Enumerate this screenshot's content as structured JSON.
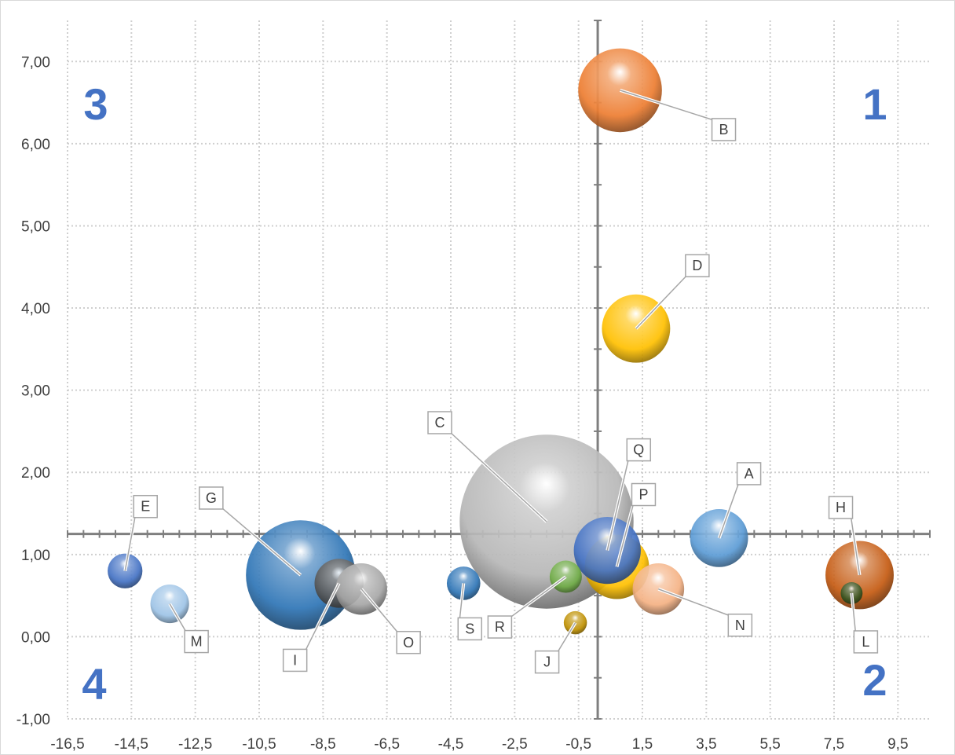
{
  "chart_data": {
    "type": "scatter",
    "subtype": "bubble",
    "title": "",
    "xlabel": "",
    "ylabel": "",
    "xlim": [
      -16.5,
      10.5
    ],
    "ylim": [
      -1.0,
      7.5
    ],
    "x_ticks": [
      "-16,5",
      "-14,5",
      "-12,5",
      "-10,5",
      "-8,5",
      "-6,5",
      "-4,5",
      "-2,5",
      "-0,5",
      "1,5",
      "3,5",
      "5,5",
      "7,5",
      "9,5"
    ],
    "y_ticks": [
      "-1,00",
      "0,00",
      "1,00",
      "2,00",
      "3,00",
      "4,00",
      "5,00",
      "6,00",
      "7,00"
    ],
    "grid": true,
    "cross_axes": {
      "x": 0.1,
      "y": 1.25
    },
    "quadrant_labels": [
      {
        "text": "1",
        "position": "top-right"
      },
      {
        "text": "2",
        "position": "bottom-right"
      },
      {
        "text": "3",
        "position": "top-left"
      },
      {
        "text": "4",
        "position": "bottom-left"
      }
    ],
    "points": [
      {
        "label": "A",
        "x": 3.9,
        "y": 1.2,
        "size": 45,
        "color": "#5b9bd5"
      },
      {
        "label": "B",
        "x": 0.8,
        "y": 6.65,
        "size": 65,
        "color": "#ed7d31"
      },
      {
        "label": "C",
        "x": -1.5,
        "y": 1.4,
        "size": 135,
        "color": "#b7b7b7"
      },
      {
        "label": "D",
        "x": 1.3,
        "y": 3.75,
        "size": 53,
        "color": "#ffc000"
      },
      {
        "label": "E",
        "x": -14.7,
        "y": 0.8,
        "size": 27,
        "color": "#4472c4"
      },
      {
        "label": "G",
        "x": -9.2,
        "y": 0.75,
        "size": 85,
        "color": "#2e75b6"
      },
      {
        "label": "H",
        "x": 8.3,
        "y": 0.75,
        "size": 53,
        "color": "#c55a11"
      },
      {
        "label": "I",
        "x": -8.0,
        "y": 0.65,
        "size": 38,
        "color": "#595959"
      },
      {
        "label": "J",
        "x": -0.6,
        "y": 0.17,
        "size": 18,
        "color": "#bf9000"
      },
      {
        "label": "L",
        "x": 8.05,
        "y": 0.53,
        "size": 17,
        "color": "#375623"
      },
      {
        "label": "M",
        "x": -13.3,
        "y": 0.4,
        "size": 30,
        "color": "#9dc3e6"
      },
      {
        "label": "N",
        "x": 2.0,
        "y": 0.58,
        "size": 40,
        "color": "#f4b183"
      },
      {
        "label": "O",
        "x": -7.3,
        "y": 0.58,
        "size": 40,
        "color": "#a6a6a6"
      },
      {
        "label": "P",
        "x": 0.7,
        "y": 0.85,
        "size": 50,
        "color": "#ffc000"
      },
      {
        "label": "Q",
        "x": 0.4,
        "y": 1.05,
        "size": 52,
        "color": "#4472c4"
      },
      {
        "label": "R",
        "x": -0.9,
        "y": 0.73,
        "size": 25,
        "color": "#70ad47"
      },
      {
        "label": "S",
        "x": -4.1,
        "y": 0.65,
        "size": 26,
        "color": "#2e75b6"
      }
    ]
  }
}
